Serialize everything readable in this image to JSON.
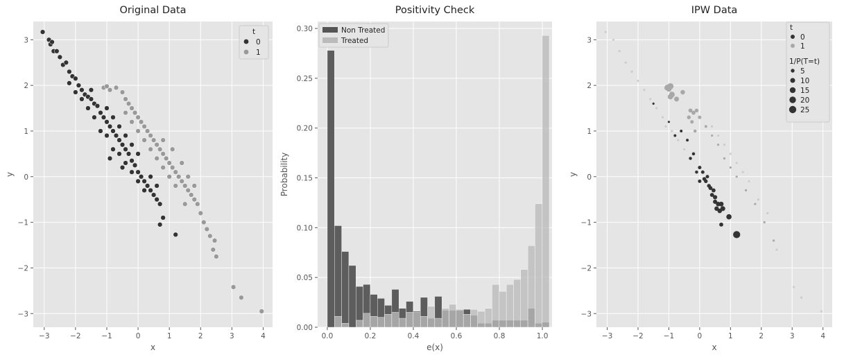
{
  "chart_data": [
    {
      "type": "scatter",
      "title": "Original Data",
      "xlabel": "x",
      "ylabel": "y",
      "xlim": [
        -3.35,
        4.3
      ],
      "ylim": [
        -3.3,
        3.4
      ],
      "xticks": [
        -3,
        -2,
        -1,
        0,
        1,
        2,
        3,
        4
      ],
      "yticks": [
        -3,
        -2,
        -1,
        0,
        1,
        2,
        3
      ],
      "xticklabels": [
        "−3",
        "−2",
        "−1",
        "0",
        "1",
        "2",
        "3",
        "4"
      ],
      "yticklabels": [
        "−3",
        "−2",
        "−1",
        "0",
        "1",
        "2",
        "3"
      ],
      "grid": true,
      "legend": {
        "title": "t",
        "position": "top-right",
        "entries": [
          "0",
          "1"
        ]
      },
      "series": [
        {
          "color": "#333333",
          "points": [
            [
              -3.05,
              3.17
            ],
            [
              -2.85,
              3.0
            ],
            [
              -2.8,
              2.9
            ],
            [
              -2.75,
              2.95
            ],
            [
              -2.7,
              2.75
            ],
            [
              -2.6,
              2.75
            ],
            [
              -2.5,
              2.62
            ],
            [
              -2.4,
              2.45
            ],
            [
              -2.3,
              2.5
            ],
            [
              -2.2,
              2.3
            ],
            [
              -2.1,
              2.2
            ],
            [
              -2.0,
              2.15
            ],
            [
              -1.9,
              2.0
            ],
            [
              -1.8,
              1.9
            ],
            [
              -1.7,
              1.8
            ],
            [
              -1.6,
              1.75
            ],
            [
              -1.5,
              1.7
            ],
            [
              -1.4,
              1.6
            ],
            [
              -1.3,
              1.55
            ],
            [
              -1.2,
              1.4
            ],
            [
              -1.1,
              1.3
            ],
            [
              -1.0,
              1.2
            ],
            [
              -0.9,
              1.1
            ],
            [
              -0.8,
              1.0
            ],
            [
              -0.7,
              0.9
            ],
            [
              -0.6,
              0.8
            ],
            [
              -0.5,
              0.7
            ],
            [
              -0.4,
              0.6
            ],
            [
              -0.3,
              0.5
            ],
            [
              -0.2,
              0.35
            ],
            [
              -0.1,
              0.25
            ],
            [
              0.0,
              0.1
            ],
            [
              0.1,
              0.0
            ],
            [
              0.2,
              -0.1
            ],
            [
              0.3,
              -0.2
            ],
            [
              0.4,
              -0.3
            ],
            [
              0.5,
              -0.4
            ],
            [
              0.6,
              -0.5
            ],
            [
              0.7,
              -0.6
            ],
            [
              0.8,
              -0.9
            ],
            [
              0.7,
              -1.05
            ],
            [
              1.2,
              -1.27
            ],
            [
              -1.2,
              1.0
            ],
            [
              -1.0,
              0.9
            ],
            [
              -0.8,
              0.6
            ],
            [
              -0.6,
              0.5
            ],
            [
              -0.4,
              0.3
            ],
            [
              -0.2,
              0.1
            ],
            [
              0.0,
              -0.1
            ],
            [
              0.2,
              -0.3
            ],
            [
              -1.4,
              1.3
            ],
            [
              -1.6,
              1.5
            ],
            [
              -1.8,
              1.7
            ],
            [
              -2.0,
              1.85
            ],
            [
              -1.0,
              1.5
            ],
            [
              -0.8,
              1.3
            ],
            [
              -0.6,
              1.1
            ],
            [
              -0.4,
              0.9
            ],
            [
              -0.2,
              0.7
            ],
            [
              0.0,
              0.5
            ],
            [
              0.4,
              0.0
            ],
            [
              0.6,
              -0.2
            ],
            [
              -2.2,
              2.05
            ],
            [
              -1.5,
              1.9
            ],
            [
              -0.9,
              0.4
            ],
            [
              -0.5,
              0.2
            ]
          ]
        },
        {
          "color": "#999999",
          "points": [
            [
              -1.1,
              1.95
            ],
            [
              -1.0,
              1.98
            ],
            [
              -0.9,
              1.9
            ],
            [
              -0.7,
              1.95
            ],
            [
              -0.5,
              1.85
            ],
            [
              -0.4,
              1.7
            ],
            [
              -0.3,
              1.6
            ],
            [
              -0.2,
              1.5
            ],
            [
              -0.1,
              1.4
            ],
            [
              0.0,
              1.3
            ],
            [
              0.1,
              1.2
            ],
            [
              0.2,
              1.1
            ],
            [
              0.3,
              1.0
            ],
            [
              0.4,
              0.9
            ],
            [
              0.5,
              0.8
            ],
            [
              0.6,
              0.7
            ],
            [
              0.7,
              0.6
            ],
            [
              0.8,
              0.5
            ],
            [
              0.9,
              0.4
            ],
            [
              1.0,
              0.3
            ],
            [
              1.1,
              0.2
            ],
            [
              1.2,
              0.1
            ],
            [
              1.3,
              0.0
            ],
            [
              1.4,
              -0.1
            ],
            [
              1.5,
              -0.2
            ],
            [
              1.6,
              -0.3
            ],
            [
              1.7,
              -0.4
            ],
            [
              1.8,
              -0.5
            ],
            [
              1.9,
              -0.6
            ],
            [
              2.0,
              -0.8
            ],
            [
              2.1,
              -1.0
            ],
            [
              2.2,
              -1.15
            ],
            [
              2.3,
              -1.3
            ],
            [
              2.45,
              -1.4
            ],
            [
              2.4,
              -1.6
            ],
            [
              2.5,
              -1.75
            ],
            [
              3.05,
              -2.42
            ],
            [
              3.3,
              -2.65
            ],
            [
              3.95,
              -2.95
            ],
            [
              0.0,
              1.0
            ],
            [
              0.2,
              0.8
            ],
            [
              0.4,
              0.6
            ],
            [
              0.6,
              0.4
            ],
            [
              0.8,
              0.2
            ],
            [
              1.0,
              0.0
            ],
            [
              1.2,
              -0.2
            ],
            [
              -0.4,
              1.4
            ],
            [
              -0.2,
              1.2
            ],
            [
              1.4,
              0.3
            ],
            [
              1.6,
              0.0
            ],
            [
              1.8,
              -0.2
            ],
            [
              1.5,
              -0.6
            ],
            [
              0.8,
              0.8
            ],
            [
              1.1,
              0.6
            ]
          ]
        }
      ]
    },
    {
      "type": "bar",
      "title": "Positivity Check",
      "xlabel": "e(x)",
      "ylabel": "Probability",
      "xlim": [
        -0.045,
        1.045
      ],
      "ylim": [
        0,
        0.307
      ],
      "xticks": [
        0.0,
        0.2,
        0.4,
        0.6,
        0.8,
        1.0
      ],
      "yticks": [
        0.0,
        0.05,
        0.1,
        0.15,
        0.2,
        0.25,
        0.3
      ],
      "xticklabels": [
        "0.0",
        "0.2",
        "0.4",
        "0.6",
        "0.8",
        "1.0"
      ],
      "yticklabels": [
        "0.00",
        "0.05",
        "0.10",
        "0.15",
        "0.20",
        "0.25",
        "0.30"
      ],
      "grid": true,
      "legend": {
        "position": "top-left"
      },
      "bin_edges_start": 0.0,
      "bin_width": 0.0333,
      "series": [
        {
          "name": "Non Treated",
          "color": "#555555",
          "values": [
            0.278,
            0.102,
            0.076,
            0.062,
            0.041,
            0.043,
            0.033,
            0.029,
            0.022,
            0.038,
            0.019,
            0.026,
            0.016,
            0.03,
            0.009,
            0.031,
            0.017,
            0.017,
            0.017,
            0.018,
            0.012,
            0.004,
            0.004,
            0.007,
            0.007,
            0.007,
            0.007,
            0.007,
            0.019,
            0.004,
            0.005
          ]
        },
        {
          "name": "Treated",
          "color": "#bbbbbb",
          "values": [
            0.0,
            0.011,
            0.004,
            0.0,
            0.007,
            0.014,
            0.011,
            0.01,
            0.013,
            0.015,
            0.009,
            0.015,
            0.015,
            0.011,
            0.021,
            0.009,
            0.019,
            0.023,
            0.018,
            0.013,
            0.018,
            0.016,
            0.019,
            0.043,
            0.036,
            0.043,
            0.048,
            0.058,
            0.082,
            0.124,
            0.293
          ]
        }
      ]
    },
    {
      "type": "scatter",
      "title": "IPW Data",
      "xlabel": "x",
      "ylabel": "y",
      "xlim": [
        -3.35,
        4.3
      ],
      "ylim": [
        -3.3,
        3.4
      ],
      "xticks": [
        -3,
        -2,
        -1,
        0,
        1,
        2,
        3,
        4
      ],
      "yticks": [
        -3,
        -2,
        -1,
        0,
        1,
        2,
        3
      ],
      "xticklabels": [
        "−3",
        "−2",
        "−1",
        "0",
        "1",
        "2",
        "3",
        "4"
      ],
      "yticklabels": [
        "−3",
        "−2",
        "−1",
        "0",
        "1",
        "2",
        "3"
      ],
      "grid": true,
      "legend": {
        "position": "top-right",
        "hue_title": "t",
        "hue_entries": [
          "0",
          "1"
        ],
        "size_title": "1/P(T=t)",
        "size_entries": [
          "5",
          "10",
          "15",
          "20",
          "25"
        ],
        "size_values": [
          5,
          10,
          15,
          20,
          25
        ]
      },
      "series": [
        {
          "color": "#333333",
          "points": [
            [
              -0.6,
              1.0,
              2
            ],
            [
              -0.4,
              0.8,
              2
            ],
            [
              -0.2,
              0.5,
              3
            ],
            [
              0.0,
              0.2,
              4
            ],
            [
              0.1,
              0.1,
              4
            ],
            [
              0.2,
              -0.1,
              5
            ],
            [
              0.3,
              -0.2,
              5
            ],
            [
              0.4,
              -0.4,
              6
            ],
            [
              0.5,
              -0.55,
              7
            ],
            [
              0.6,
              -0.6,
              8
            ],
            [
              0.7,
              -0.6,
              9
            ],
            [
              0.75,
              -0.7,
              10
            ],
            [
              0.55,
              -0.7,
              8
            ],
            [
              0.65,
              -0.75,
              8
            ],
            [
              0.7,
              -1.05,
              6
            ],
            [
              0.95,
              -0.88,
              12
            ],
            [
              1.2,
              -1.27,
              24
            ],
            [
              -1.5,
              1.6,
              1
            ],
            [
              -1.0,
              1.2,
              1
            ],
            [
              -0.8,
              0.9,
              2
            ],
            [
              0.25,
              0.0,
              4
            ],
            [
              0.45,
              -0.3,
              6
            ],
            [
              -0.3,
              0.4,
              3
            ],
            [
              0.15,
              -0.05,
              5
            ],
            [
              0.35,
              -0.25,
              6
            ],
            [
              0.0,
              -0.1,
              4
            ],
            [
              -0.1,
              0.1,
              3
            ],
            [
              0.5,
              -0.45,
              7
            ]
          ]
        },
        {
          "color": "#a8a8a8",
          "points": [
            [
              -1.05,
              1.95,
              15
            ],
            [
              -0.95,
              1.98,
              18
            ],
            [
              -1.0,
              1.92,
              12
            ],
            [
              -0.9,
              1.8,
              14
            ],
            [
              -0.95,
              1.75,
              12
            ],
            [
              -0.75,
              1.7,
              10
            ],
            [
              -0.55,
              1.85,
              8
            ],
            [
              -0.3,
              1.45,
              6
            ],
            [
              -0.2,
              1.4,
              6
            ],
            [
              -0.1,
              1.45,
              5
            ],
            [
              0.0,
              1.3,
              4
            ],
            [
              0.2,
              1.1,
              2
            ],
            [
              0.4,
              0.9,
              1
            ],
            [
              0.6,
              0.7,
              1
            ],
            [
              0.8,
              0.4,
              1
            ],
            [
              1.0,
              0.2,
              1
            ],
            [
              1.2,
              0.0,
              1
            ],
            [
              1.5,
              -0.3,
              1
            ],
            [
              1.8,
              -0.6,
              1
            ],
            [
              2.1,
              -1.0,
              1
            ],
            [
              2.4,
              -1.4,
              1
            ],
            [
              -0.35,
              1.3,
              5
            ],
            [
              -0.25,
              1.2,
              4
            ],
            [
              -0.15,
              1.0,
              3
            ]
          ]
        },
        {
          "color": "#cccccc",
          "points": [
            [
              -3.05,
              3.17,
              1
            ],
            [
              -2.8,
              3.0,
              1
            ],
            [
              -2.6,
              2.75,
              1
            ],
            [
              -2.4,
              2.5,
              1
            ],
            [
              -2.2,
              2.3,
              1
            ],
            [
              -2.0,
              2.1,
              1
            ],
            [
              -1.8,
              1.9,
              1
            ],
            [
              -1.6,
              1.7,
              1
            ],
            [
              -1.4,
              1.5,
              1
            ],
            [
              -1.2,
              1.3,
              1
            ],
            [
              -1.1,
              1.1,
              1
            ],
            [
              -0.9,
              1.0,
              1
            ],
            [
              -0.7,
              0.8,
              1
            ],
            [
              -0.5,
              0.6,
              1
            ],
            [
              0.4,
              1.1,
              1
            ],
            [
              0.6,
              0.9,
              1
            ],
            [
              0.8,
              0.7,
              1
            ],
            [
              1.0,
              0.5,
              1
            ],
            [
              1.2,
              0.3,
              1
            ],
            [
              1.4,
              0.1,
              1
            ],
            [
              1.6,
              -0.1,
              1
            ],
            [
              1.9,
              -0.5,
              1
            ],
            [
              2.2,
              -0.8,
              1
            ],
            [
              2.5,
              -1.6,
              1
            ],
            [
              3.05,
              -2.42,
              1
            ],
            [
              3.3,
              -2.65,
              1
            ],
            [
              3.95,
              -2.95,
              1
            ]
          ]
        }
      ]
    }
  ]
}
